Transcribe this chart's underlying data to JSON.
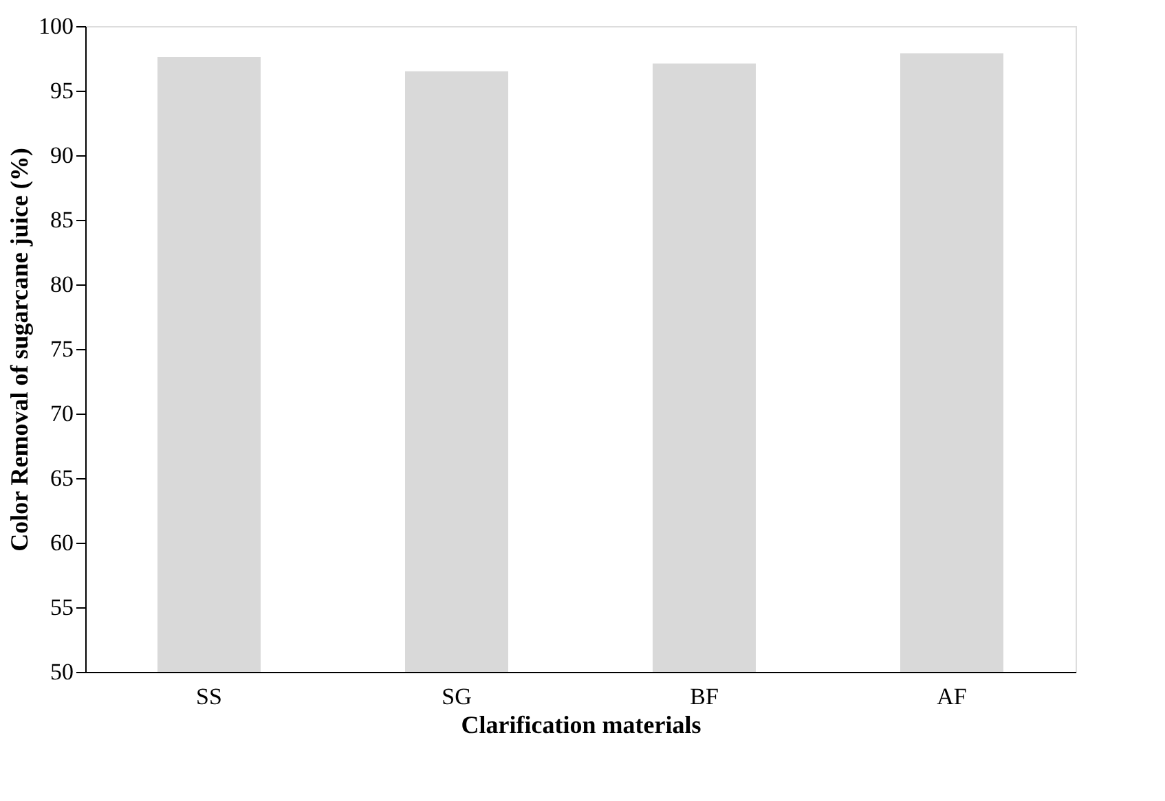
{
  "chart_data": {
    "type": "bar",
    "xlabel": "Clarification materials",
    "ylabel": "Color Removal of sugarcane juice (%)",
    "categories": [
      "SS",
      "SG",
      "BF",
      "AF"
    ],
    "values": [
      97.6,
      96.5,
      97.1,
      97.9
    ],
    "color": "#d9d9d9",
    "ylim": [
      50,
      100
    ],
    "yticks": [
      50,
      55,
      60,
      65,
      70,
      75,
      80,
      85,
      90,
      95,
      100
    ],
    "grid": false
  }
}
